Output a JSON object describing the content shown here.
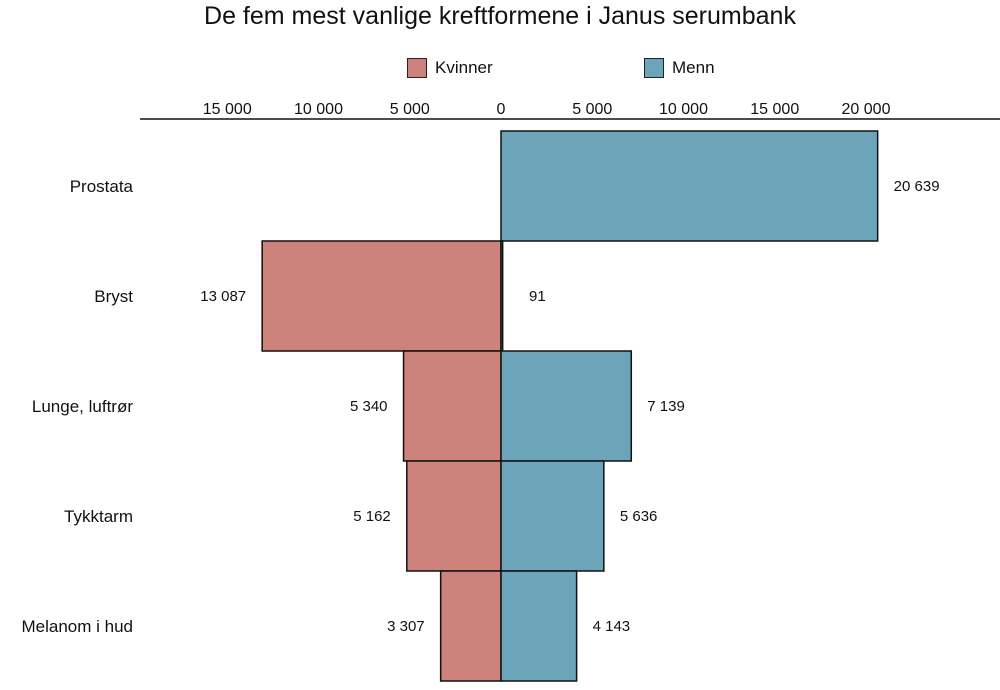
{
  "chart_data": {
    "type": "bar",
    "orientation": "horizontal-diverging",
    "title": "De fem mest vanlige kreftformene i Janus serumbank",
    "categories": [
      "Prostata",
      "Bryst",
      "Lunge, luftrør",
      "Tykktarm",
      "Melanom i hud"
    ],
    "series": [
      {
        "name": "Kvinner",
        "color": "#cd827c",
        "direction": "left",
        "values": [
          0,
          13087,
          5340,
          5162,
          3307
        ],
        "labels": [
          "",
          "13 087",
          "5 340",
          "5 162",
          "3 307"
        ]
      },
      {
        "name": "Menn",
        "color": "#6ca5ba",
        "direction": "right",
        "values": [
          20639,
          91,
          7139,
          5636,
          4143
        ],
        "labels": [
          "20 639",
          "91",
          "7 139",
          "5 636",
          "4 143"
        ]
      }
    ],
    "xlim": [
      -15000,
      20000
    ],
    "xticks": [
      -15000,
      -10000,
      -5000,
      0,
      5000,
      10000,
      15000,
      20000
    ],
    "xtick_labels": [
      "15 000",
      "10 000",
      "5 000",
      "0",
      "5 000",
      "10 000",
      "15 000",
      "20 000"
    ],
    "axis_position": "top",
    "legend": "top-center",
    "grid": false
  }
}
